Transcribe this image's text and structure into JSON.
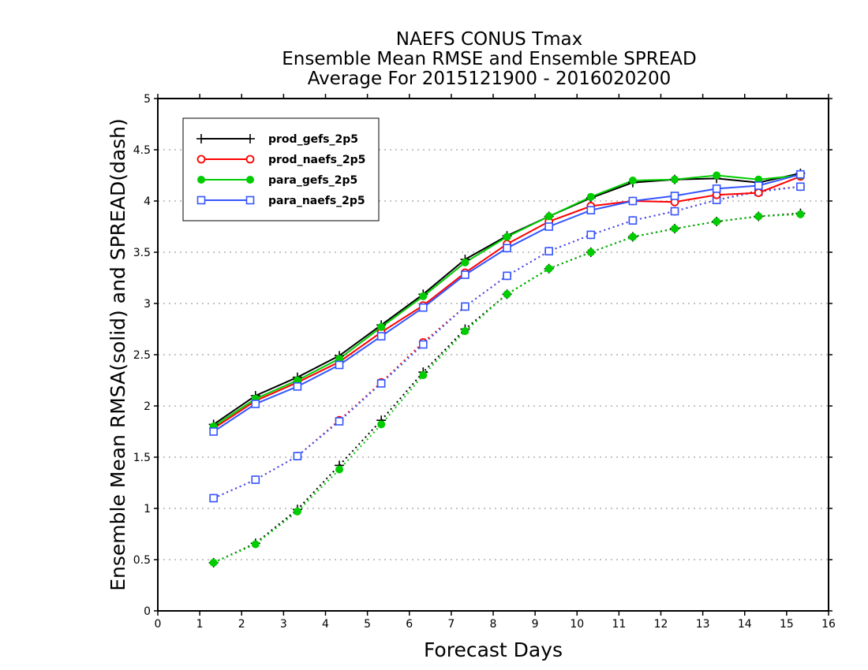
{
  "chart_data": {
    "type": "line",
    "title_lines": [
      "NAEFS CONUS Tmax",
      "Ensemble Mean RMSE and Ensemble SPREAD",
      "Average For 2015121900 - 2016020200"
    ],
    "xlabel": "Forecast Days",
    "ylabel": "Ensemble Mean RMSA(solid) and SPREAD(dash)",
    "xlim": [
      0,
      16
    ],
    "ylim": [
      0,
      5
    ],
    "xticks": [
      "0",
      "1",
      "2",
      "3",
      "4",
      "5",
      "6",
      "7",
      "8",
      "9",
      "10",
      "11",
      "12",
      "13",
      "14",
      "15",
      "16"
    ],
    "yticks": [
      "0",
      "0.5",
      "1",
      "1.5",
      "2",
      "2.5",
      "3",
      "3.5",
      "4",
      "4.5",
      "5"
    ],
    "grid": "horizontal-dotted",
    "legend_position": "top-left",
    "x": [
      1.33,
      2.33,
      3.33,
      4.33,
      5.33,
      6.33,
      7.33,
      8.33,
      9.33,
      10.33,
      11.33,
      12.33,
      13.33,
      14.33,
      15.33
    ],
    "series": [
      {
        "name": "prod_gefs_2p5",
        "color": "#000000",
        "marker": "plus",
        "rmse": [
          1.82,
          2.1,
          2.28,
          2.49,
          2.79,
          3.09,
          3.43,
          3.66,
          3.85,
          4.03,
          4.18,
          4.21,
          4.22,
          4.18,
          4.27
        ],
        "spread": [
          0.47,
          0.66,
          0.99,
          1.42,
          1.86,
          2.33,
          2.75,
          3.09,
          3.34,
          3.5,
          3.65,
          3.73,
          3.8,
          3.85,
          3.88
        ]
      },
      {
        "name": "prod_naefs_2p5",
        "color": "#ff0000",
        "marker": "circle",
        "rmse": [
          1.78,
          2.05,
          2.23,
          2.43,
          2.72,
          2.98,
          3.3,
          3.58,
          3.8,
          3.95,
          4.0,
          3.99,
          4.06,
          4.08,
          4.24
        ],
        "spread": [
          1.1,
          1.28,
          1.51,
          1.86,
          2.23,
          2.62,
          2.97,
          3.27,
          3.51,
          3.67,
          3.81,
          3.9,
          4.01,
          4.1,
          4.14
        ]
      },
      {
        "name": "para_gefs_2p5",
        "color": "#00cc00",
        "marker": "filled-circle",
        "rmse": [
          1.8,
          2.07,
          2.25,
          2.46,
          2.77,
          3.07,
          3.4,
          3.65,
          3.85,
          4.04,
          4.2,
          4.21,
          4.25,
          4.21,
          4.25
        ],
        "spread": [
          0.47,
          0.65,
          0.97,
          1.38,
          1.82,
          2.3,
          2.73,
          3.09,
          3.34,
          3.5,
          3.65,
          3.73,
          3.8,
          3.85,
          3.87
        ]
      },
      {
        "name": "para_naefs_2p5",
        "color": "#3355ff",
        "marker": "square",
        "rmse": [
          1.75,
          2.02,
          2.19,
          2.4,
          2.68,
          2.96,
          3.28,
          3.54,
          3.75,
          3.91,
          4.0,
          4.05,
          4.12,
          4.15,
          4.26
        ],
        "spread": [
          1.1,
          1.28,
          1.51,
          1.85,
          2.22,
          2.6,
          2.97,
          3.27,
          3.51,
          3.67,
          3.81,
          3.9,
          4.01,
          4.09,
          4.14
        ]
      }
    ]
  }
}
